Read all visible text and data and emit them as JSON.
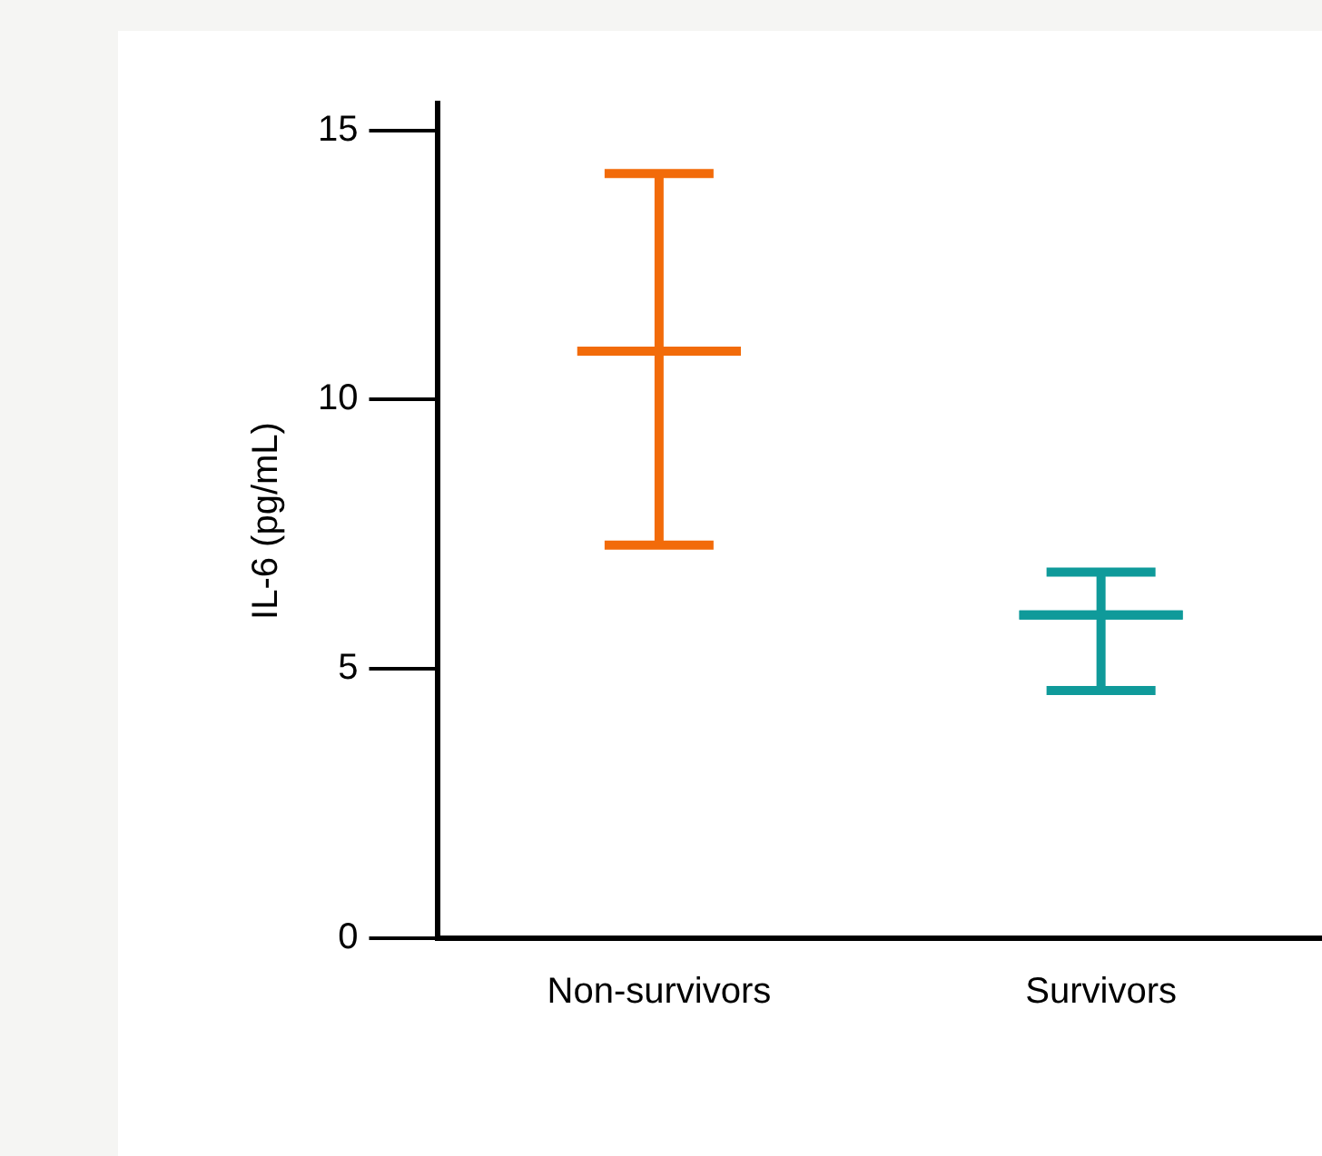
{
  "chart_data": {
    "type": "box",
    "ylabel": "IL-6 (pg/mL)",
    "categories": [
      "Non-survivors",
      "Survivors"
    ],
    "boxes": [
      {
        "low": 7.3,
        "q1": 10.9,
        "median": 10.9,
        "q3": 10.9,
        "high": 14.2
      },
      {
        "low": 4.6,
        "q1": 6.0,
        "median": 6.0,
        "q3": 6.0,
        "high": 6.8
      }
    ],
    "colors": [
      "#f26b0a",
      "#0f9a9a"
    ],
    "ylim": [
      0,
      15.5
    ],
    "yticks": [
      0,
      5,
      10,
      15
    ],
    "grid": false,
    "legend": false
  }
}
